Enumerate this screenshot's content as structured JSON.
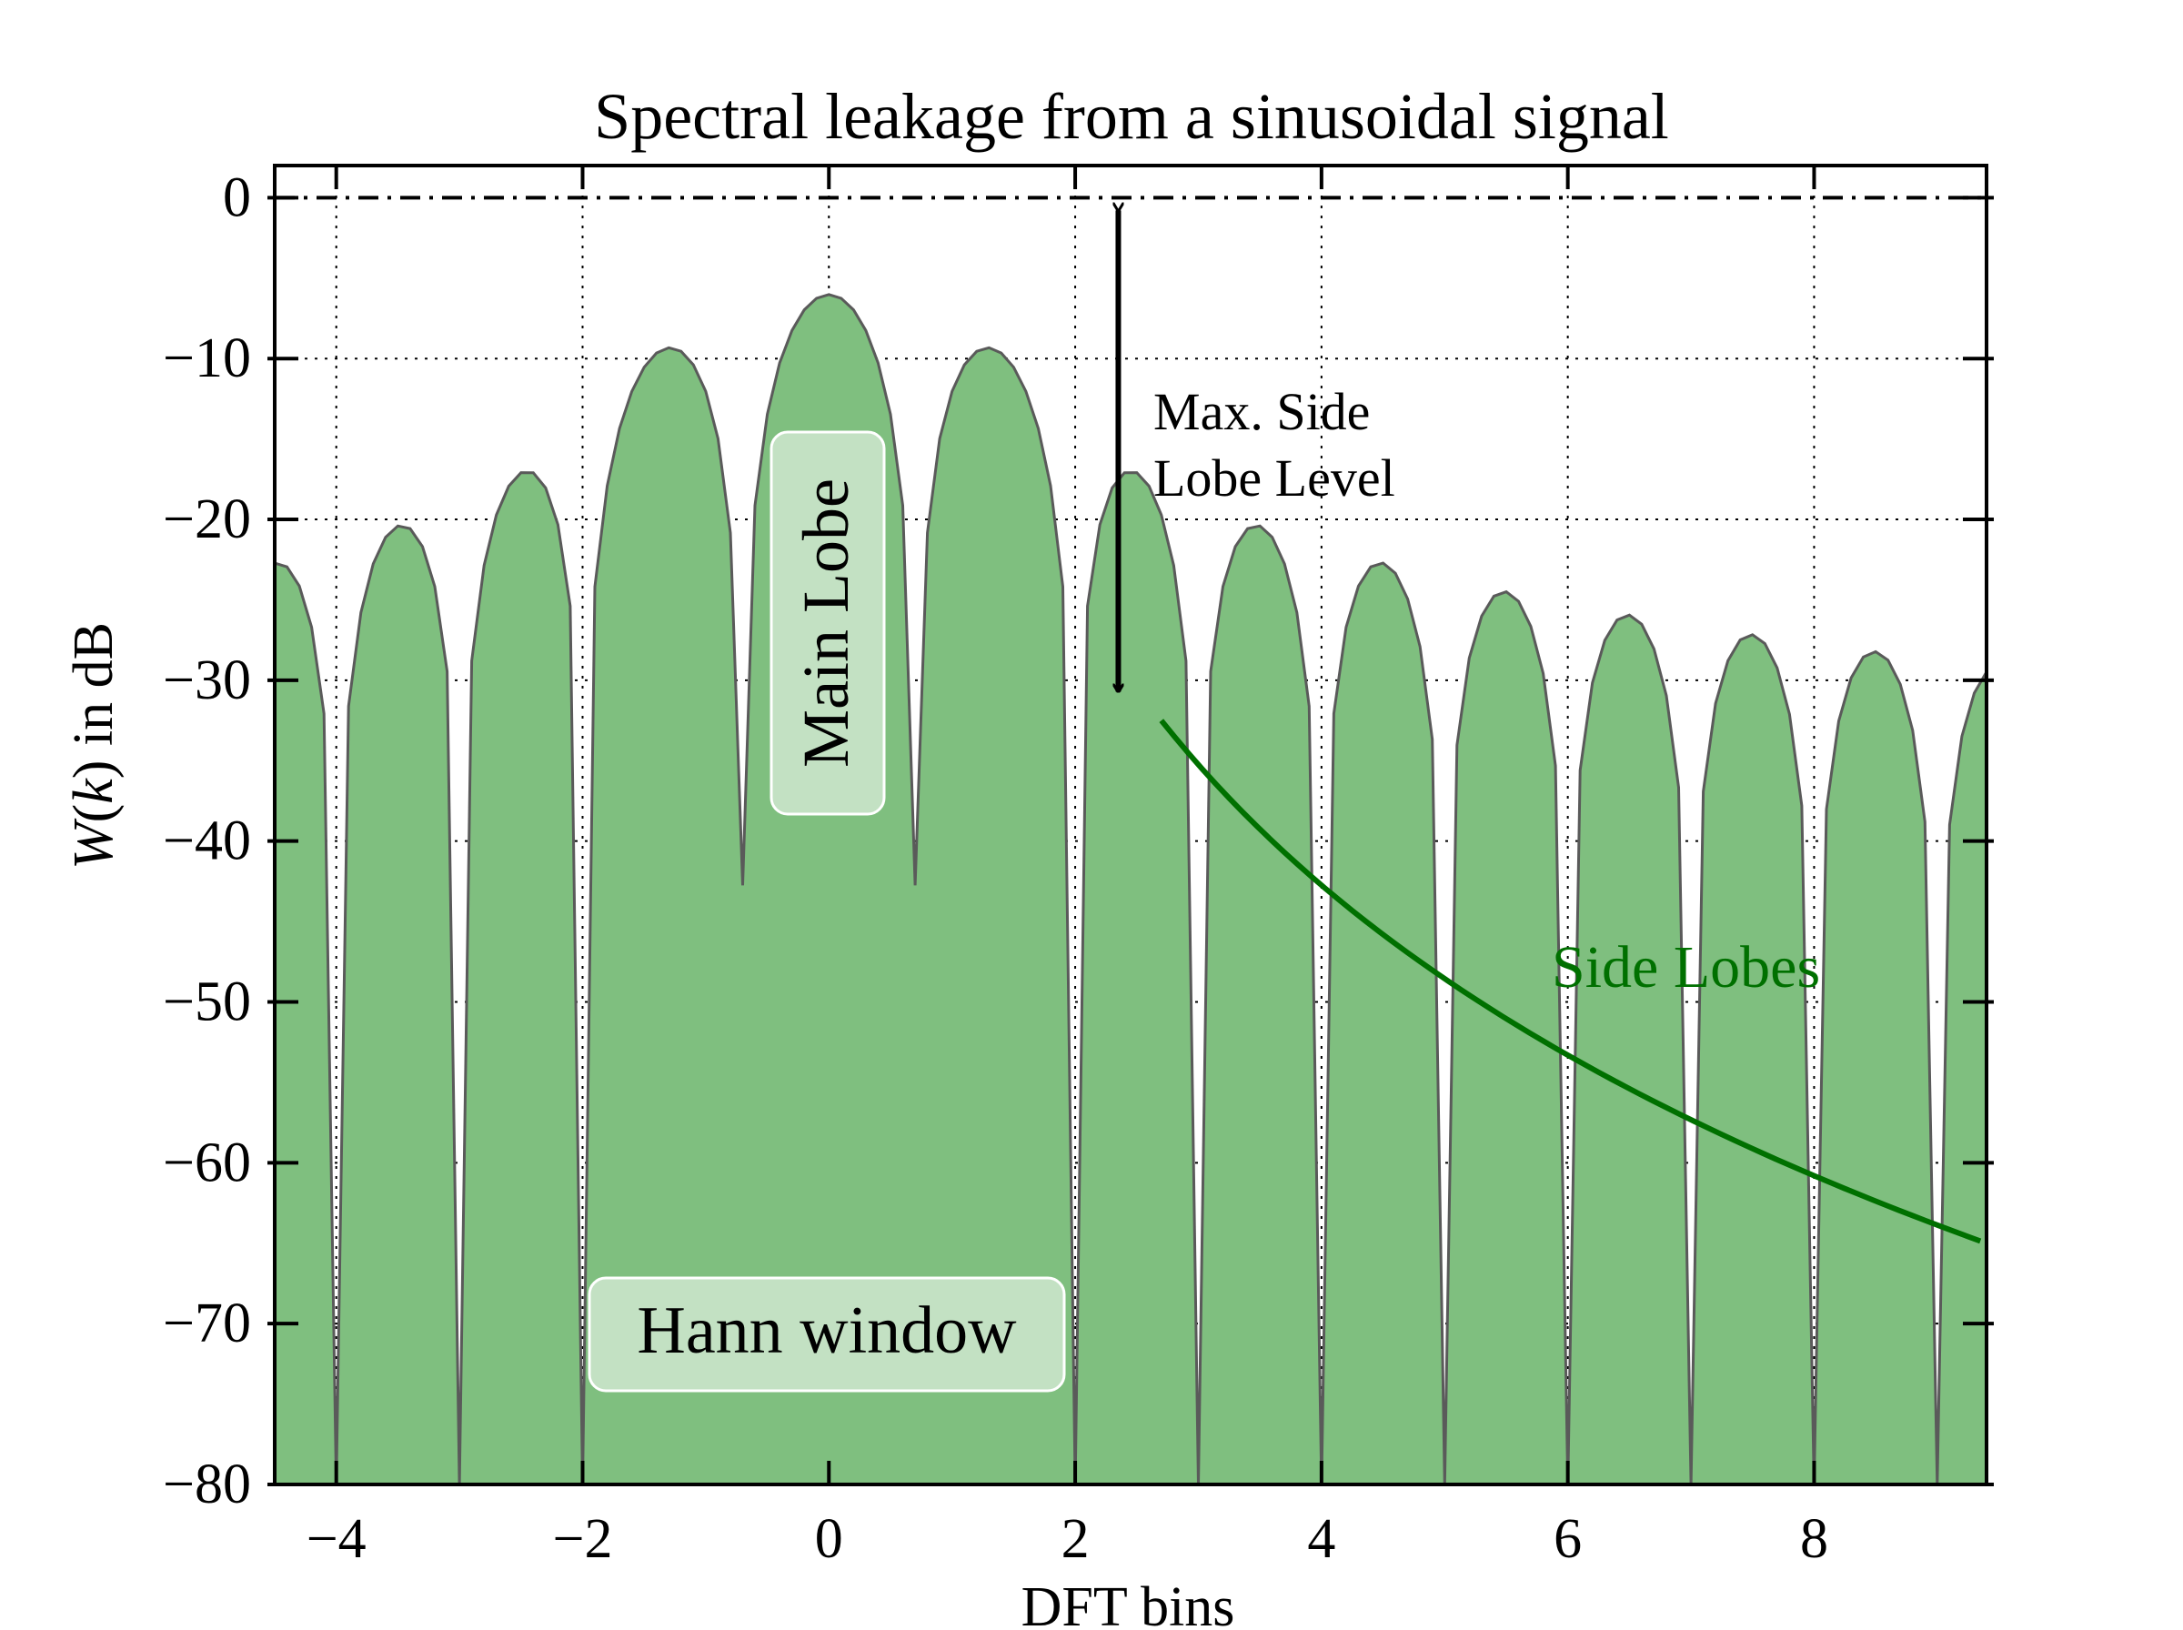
{
  "chart_data": {
    "type": "area",
    "title": "Spectral leakage from a sinusoidal signal",
    "xlabel": "DFT bins",
    "ylabel": {
      "text": "W(k) in dB",
      "fn": "W",
      "arg": "k",
      "unit": "in dB"
    },
    "xlim": [
      -4.5,
      9.4
    ],
    "ylim": [
      -80,
      2
    ],
    "xticks": [
      -4,
      -2,
      0,
      2,
      4,
      6,
      8
    ],
    "yticks": [
      0,
      -10,
      -20,
      -30,
      -40,
      -50,
      -60,
      -70,
      -80
    ],
    "xtick_labels": [
      "−4",
      "−2",
      "0",
      "2",
      "4",
      "6",
      "8"
    ],
    "ytick_labels": [
      "0",
      "−10",
      "−20",
      "−30",
      "−40",
      "−50",
      "−60",
      "−70",
      "−80"
    ],
    "grid": true,
    "reference_line": {
      "y": 0,
      "style": "dash-dot"
    },
    "series": [
      {
        "label": "Hann window",
        "fill_color": "#7fbf7f",
        "line_color": "#5a5a5a",
        "kernel": "hann_dirichlet",
        "N": 64,
        "x_step": 0.1,
        "floor": -80
      }
    ],
    "annotations": {
      "main_lobe": "Main Lobe",
      "max_side_lobe_level": [
        "Max. Side",
        "Lobe Level"
      ],
      "side_lobes": "Side Lobes",
      "window_label": "Hann window",
      "arrow": {
        "x": 2.35,
        "y_top": 0,
        "y_bottom": -31.5
      },
      "side_lobe_envelope": {
        "x_start": 2.7,
        "x_end": 9.35,
        "y_at_start": -32.5,
        "rolloff_db_per_decade": -60,
        "color": "#007000"
      }
    }
  }
}
